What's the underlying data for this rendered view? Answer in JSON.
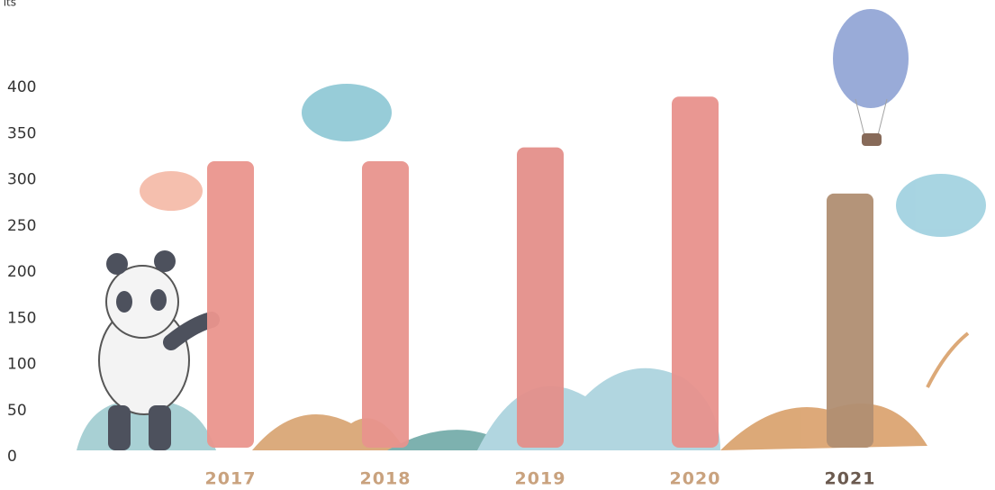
{
  "chart_data": {
    "type": "bar",
    "y_label": "its",
    "categories": [
      "2017",
      "2018",
      "2019",
      "2020",
      "2021"
    ],
    "values": [
      320,
      320,
      335,
      390,
      285
    ],
    "colors": [
      "#ea958d",
      "#e8948d",
      "#e48f8a",
      "#e8918c",
      "#b08e72"
    ],
    "category_label_colors": [
      "#c9a27e",
      "#c9a27e",
      "#c9a27e",
      "#c9a27e",
      "#6b5a4f"
    ],
    "ylim": [
      0,
      400
    ],
    "yticks": [
      0,
      50,
      100,
      150,
      200,
      250,
      300,
      350,
      400
    ],
    "grid": false
  }
}
